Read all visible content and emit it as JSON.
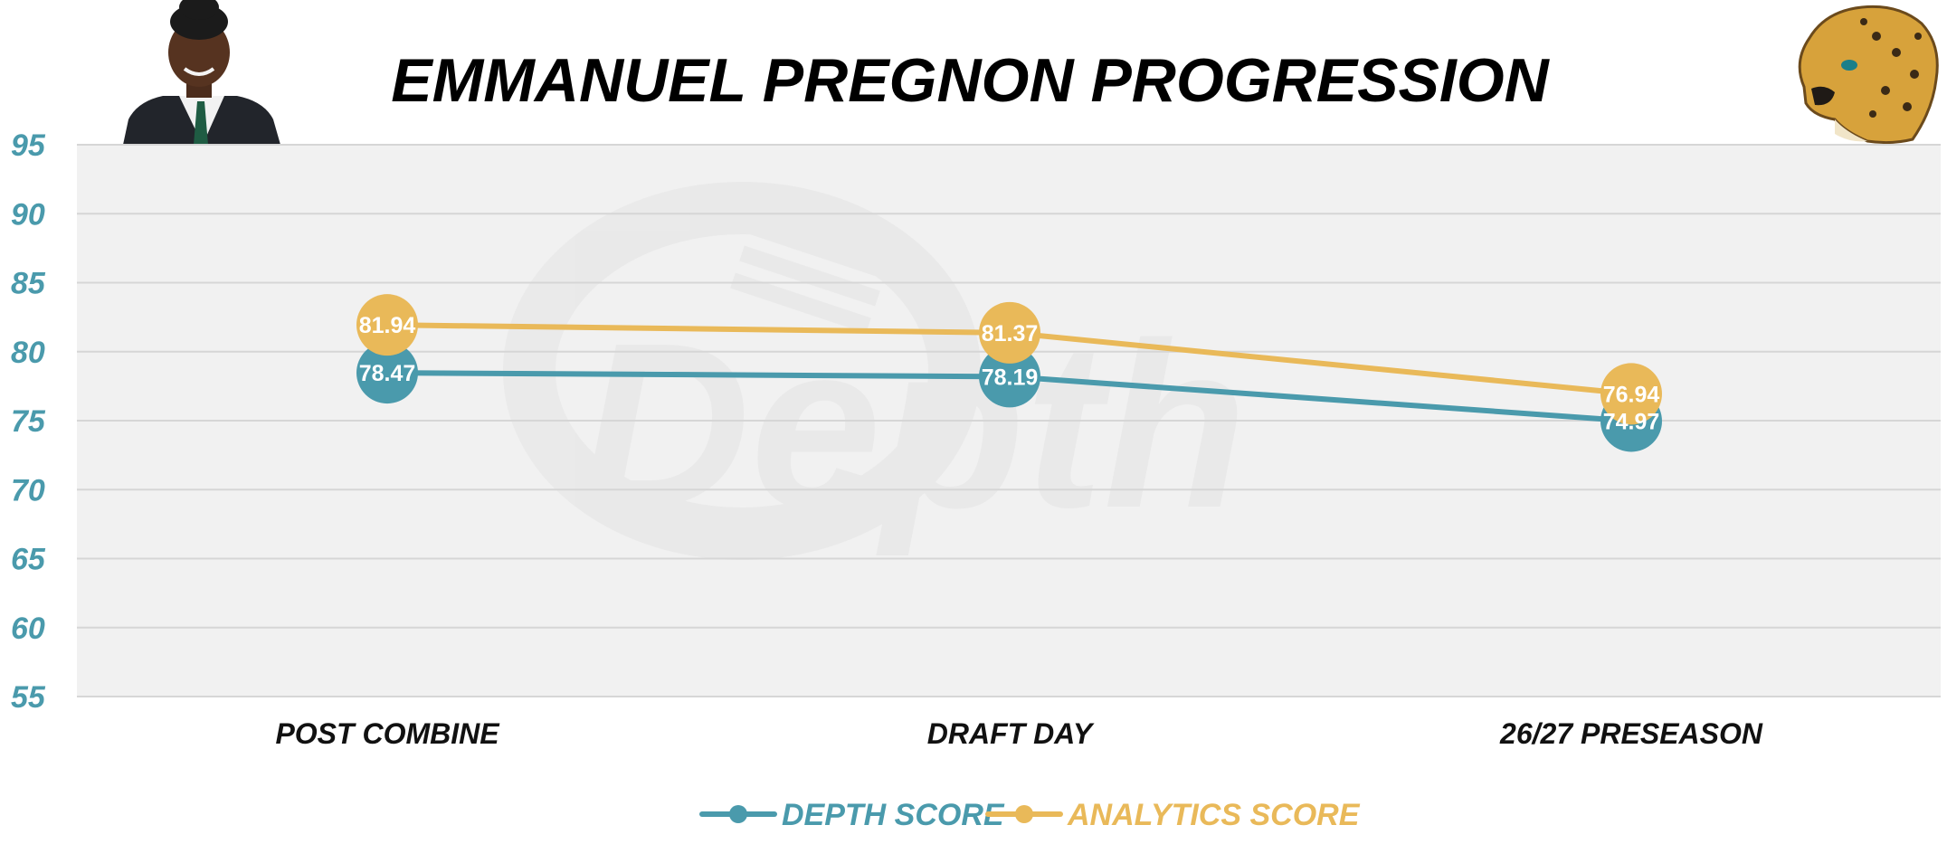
{
  "chart_data": {
    "type": "line",
    "title": "EMMANUEL PREGNON PROGRESSION",
    "watermark": "Depth",
    "categories": [
      "POST COMBINE",
      "DRAFT DAY",
      "26/27 PRESEASON"
    ],
    "series": [
      {
        "name": "DEPTH SCORE",
        "values": [
          78.47,
          78.19,
          74.97
        ],
        "labels": [
          "78.47",
          "78.19",
          "74.97"
        ],
        "color": "#4a9aac"
      },
      {
        "name": "ANALYTICS SCORE",
        "values": [
          81.94,
          81.37,
          76.94
        ],
        "labels": [
          "81.94",
          "81.37",
          "76.94"
        ],
        "color": "#e9b959"
      }
    ],
    "ylim": [
      55,
      95
    ],
    "yticks": [
      95,
      90,
      85,
      80,
      75,
      70,
      65,
      60,
      55
    ],
    "xlabel": "",
    "ylabel": "",
    "grid": true,
    "legend_position": "bottom-center",
    "plot_background": "#f1f1f1",
    "gridline_color": "#d6d6d6",
    "axis_tick_color": "#4a9aac",
    "category_label_color": "#111111",
    "data_label_color": "#ffffff"
  }
}
